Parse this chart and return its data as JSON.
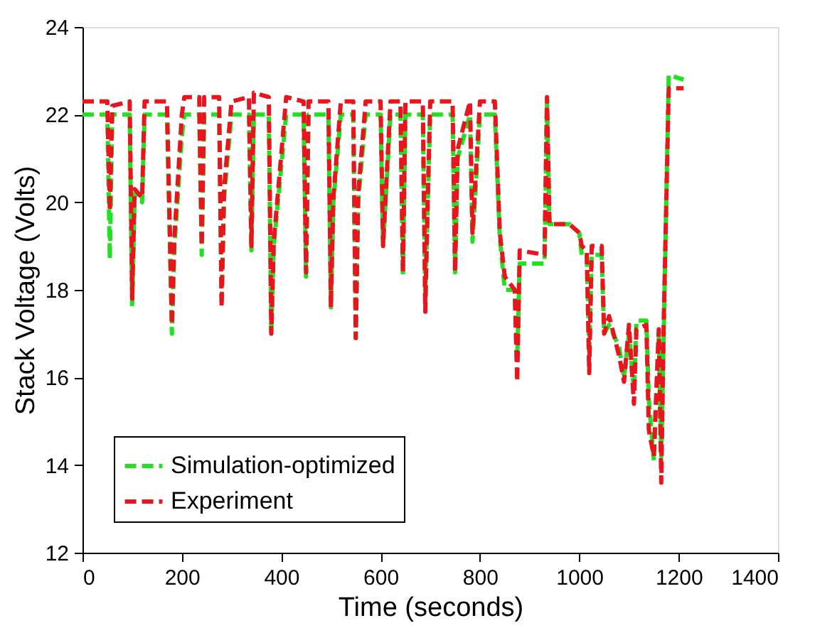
{
  "chart_data": {
    "type": "line",
    "xlabel": "Time (seconds)",
    "ylabel": "Stack Voltage (Volts)",
    "xlim": [
      0,
      1400
    ],
    "xticks": [
      0,
      200,
      400,
      600,
      800,
      1000,
      1200,
      1400
    ],
    "ylim": [
      12,
      24
    ],
    "yticks": [
      12,
      14,
      16,
      18,
      20,
      22,
      24
    ],
    "grid": false,
    "legend": "bottom left",
    "marker": "none",
    "x": [
      0,
      50,
      55,
      60,
      95,
      100,
      105,
      120,
      125,
      170,
      180,
      185,
      200,
      205,
      235,
      240,
      245,
      275,
      280,
      285,
      300,
      335,
      340,
      345,
      375,
      380,
      385,
      410,
      445,
      450,
      455,
      495,
      500,
      505,
      520,
      545,
      550,
      555,
      570,
      600,
      605,
      620,
      640,
      645,
      650,
      685,
      690,
      695,
      700,
      745,
      750,
      755,
      780,
      785,
      800,
      830,
      840,
      850,
      870,
      875,
      880,
      930,
      935,
      940,
      980,
      1000,
      1005,
      1015,
      1020,
      1025,
      1045,
      1050,
      1060,
      1080,
      1090,
      1100,
      1110,
      1115,
      1135,
      1140,
      1150,
      1160,
      1165,
      1170,
      1180,
      1210
    ],
    "series": [
      {
        "name": "Simulation-optimized",
        "color": "#22e022",
        "line_style": "dashed",
        "values": [
          22.0,
          22.0,
          18.7,
          22.0,
          22.0,
          17.6,
          20.2,
          20.0,
          22.0,
          22.0,
          17.0,
          19.0,
          21.5,
          22.0,
          22.0,
          18.8,
          22.0,
          22.0,
          17.8,
          20.1,
          22.0,
          22.0,
          18.9,
          22.0,
          22.0,
          17.0,
          19.0,
          22.0,
          22.0,
          18.3,
          22.0,
          22.0,
          17.6,
          20.0,
          22.0,
          22.0,
          16.9,
          20.0,
          22.0,
          22.0,
          19.0,
          22.0,
          22.0,
          18.3,
          22.0,
          22.0,
          17.8,
          20.0,
          22.0,
          22.0,
          18.4,
          21.0,
          22.0,
          19.1,
          22.0,
          22.0,
          19.2,
          18.0,
          18.0,
          16.4,
          18.6,
          18.6,
          22.3,
          19.5,
          19.5,
          19.3,
          18.8,
          18.8,
          16.5,
          18.8,
          18.8,
          17.0,
          17.2,
          16.7,
          16.0,
          17.0,
          15.7,
          17.3,
          17.3,
          15.5,
          14.1,
          17.0,
          14.2,
          17.0,
          22.9,
          22.8
        ]
      },
      {
        "name": "Experiment",
        "color": "#e8141e",
        "line_style": "dashed",
        "values": [
          22.3,
          22.3,
          19.8,
          22.2,
          22.3,
          17.8,
          20.3,
          20.1,
          22.3,
          22.3,
          17.2,
          19.2,
          22.0,
          22.4,
          22.4,
          19.0,
          22.4,
          22.4,
          17.6,
          20.3,
          22.3,
          22.4,
          19.0,
          22.5,
          22.4,
          17.0,
          19.1,
          22.4,
          22.3,
          18.4,
          22.3,
          22.3,
          17.6,
          20.1,
          22.3,
          22.3,
          16.9,
          20.2,
          22.3,
          22.3,
          19.0,
          22.3,
          22.3,
          18.4,
          22.3,
          22.3,
          17.5,
          20.1,
          22.3,
          22.3,
          18.4,
          21.2,
          22.3,
          19.3,
          22.3,
          22.3,
          19.3,
          18.3,
          18.0,
          15.9,
          18.9,
          18.8,
          22.4,
          19.5,
          19.5,
          19.3,
          19.0,
          18.9,
          16.1,
          19.0,
          19.0,
          17.0,
          17.4,
          16.5,
          15.9,
          17.2,
          15.4,
          17.1,
          17.2,
          14.8,
          14.2,
          17.1,
          13.6,
          17.3,
          22.6,
          22.6
        ]
      }
    ]
  }
}
